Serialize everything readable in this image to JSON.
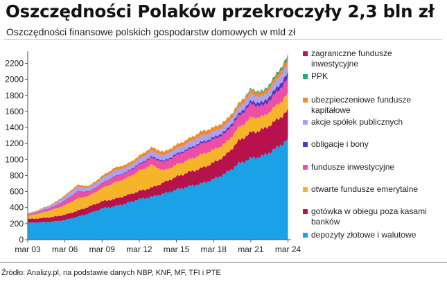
{
  "title": "Oszczędności Polaków przekroczyły 2,3 bln zł",
  "subtitle": "Oszczędności finansowe polskich gospodarstw domowych w mld zł",
  "source": "Źródło: Analizy.pl, na podstawie danych NBP, KNF, MF, TFI i PTE",
  "chart_data": {
    "type": "area",
    "stacked": true,
    "x_ticks": [
      "mar 03",
      "mar 06",
      "mar 09",
      "mar 12",
      "mar 15",
      "mar 18",
      "mar 21",
      "mar 24"
    ],
    "ylim": [
      0,
      2300
    ],
    "y_ticks": [
      0,
      200,
      400,
      600,
      800,
      1000,
      1200,
      1400,
      1600,
      1800,
      2000,
      2200
    ],
    "grid": false,
    "legend_position": "right",
    "x": [
      "2003",
      "2004",
      "2005",
      "2006",
      "2007",
      "2008",
      "2009",
      "2010",
      "2011",
      "2012",
      "2013",
      "2014",
      "2015",
      "2016",
      "2017",
      "2018",
      "2019",
      "2020",
      "2021",
      "2022",
      "2023",
      "2024"
    ],
    "series": [
      {
        "name": "depozyty złotowe i walutowe",
        "color": "#1aa1e6",
        "values": [
          210,
          215,
          225,
          245,
          285,
          330,
          390,
          415,
          455,
          505,
          535,
          575,
          625,
          665,
          700,
          755,
          830,
          945,
          1015,
          1045,
          1135,
          1250
        ]
      },
      {
        "name": "gotówka w obiegu poza kasami banków",
        "color": "#b8124c",
        "values": [
          48,
          52,
          58,
          65,
          75,
          86,
          88,
          92,
          98,
          102,
          113,
          140,
          160,
          178,
          190,
          205,
          225,
          285,
          320,
          330,
          345,
          360
        ]
      },
      {
        "name": "otwarte fundusze emerytalne",
        "color": "#f6b42a",
        "values": [
          40,
          65,
          90,
          120,
          150,
          135,
          165,
          205,
          215,
          250,
          285,
          145,
          150,
          155,
          170,
          160,
          150,
          160,
          185,
          160,
          180,
          205
        ]
      },
      {
        "name": "fundusze inwestycyjne",
        "color": "#ee4fa6",
        "values": [
          10,
          20,
          30,
          55,
          85,
          50,
          55,
          70,
          70,
          75,
          90,
          105,
          118,
          122,
          135,
          130,
          130,
          140,
          170,
          130,
          160,
          190
        ]
      },
      {
        "name": "obligacje i bony",
        "color": "#5a34c2",
        "values": [
          4,
          4,
          5,
          5,
          5,
          6,
          7,
          8,
          10,
          14,
          16,
          18,
          18,
          20,
          22,
          24,
          28,
          32,
          38,
          45,
          55,
          70
        ]
      },
      {
        "name": "akcje spółek publicznych",
        "color": "#a9a2f2",
        "values": [
          8,
          16,
          28,
          45,
          55,
          40,
          58,
          65,
          55,
          60,
          68,
          65,
          65,
          70,
          78,
          72,
          70,
          70,
          85,
          70,
          90,
          110
        ]
      },
      {
        "name": "ubezpieczeniowe fundusze kapitałowe",
        "color": "#f08a2e",
        "values": [
          5,
          8,
          12,
          18,
          28,
          26,
          32,
          40,
          38,
          40,
          45,
          46,
          48,
          50,
          55,
          52,
          52,
          52,
          55,
          50,
          55,
          62
        ]
      },
      {
        "name": "PPK",
        "color": "#1ab27a",
        "values": [
          0,
          0,
          0,
          0,
          0,
          0,
          0,
          0,
          0,
          0,
          0,
          0,
          0,
          0,
          0,
          0,
          2,
          6,
          12,
          18,
          25,
          32
        ]
      },
      {
        "name": "zagraniczne fundusze inwestycyjne",
        "color": "#c2125e",
        "values": [
          0,
          0,
          0,
          0,
          0,
          0,
          0,
          0,
          0,
          0,
          0,
          0,
          0,
          0,
          0,
          0,
          0,
          0,
          0,
          0,
          4,
          10
        ]
      }
    ]
  }
}
